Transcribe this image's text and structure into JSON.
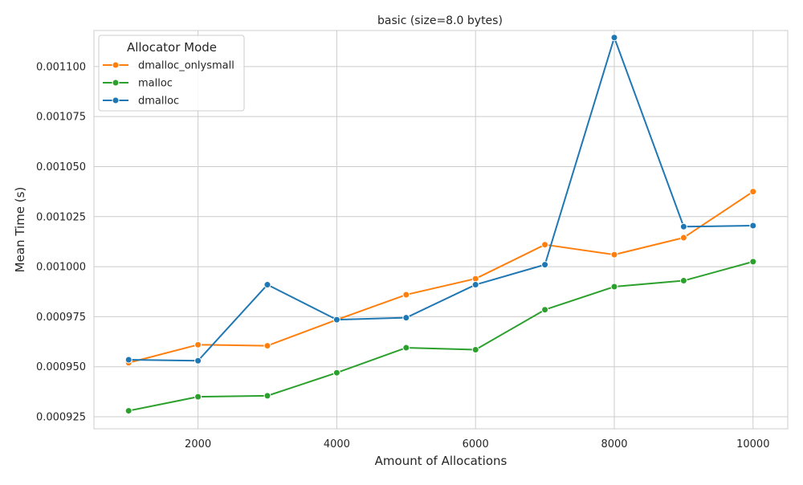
{
  "chart_data": {
    "type": "line",
    "title": "basic (size=8.0 bytes)",
    "xlabel": "Amount of Allocations",
    "ylabel": "Mean Time (s)",
    "xlim": [
      500,
      10500
    ],
    "ylim": [
      0.000919,
      0.001118
    ],
    "x_ticks": [
      2000,
      4000,
      6000,
      8000,
      10000
    ],
    "x_tick_labels": [
      "2000",
      "4000",
      "6000",
      "8000",
      "10000"
    ],
    "y_ticks": [
      0.000925,
      0.00095,
      0.000975,
      0.001,
      0.001025,
      0.00105,
      0.001075,
      0.0011
    ],
    "y_tick_labels": [
      "0.000925",
      "0.000950",
      "0.000975",
      "0.001000",
      "0.001025",
      "0.001050",
      "0.001075",
      "0.001100"
    ],
    "grid": true,
    "legend": {
      "title": "Allocator Mode",
      "placement": "top-left"
    },
    "x": [
      1000,
      2000,
      3000,
      4000,
      5000,
      6000,
      7000,
      8000,
      9000,
      10000
    ],
    "series": [
      {
        "name": "dmalloc_onlysmall",
        "color": "#ff7f0e",
        "values": [
          0.000952,
          0.000961,
          0.0009605,
          0.0009735,
          0.000986,
          0.000994,
          0.001011,
          0.001006,
          0.0010145,
          0.0010375
        ]
      },
      {
        "name": "malloc",
        "color": "#2ca02c",
        "values": [
          0.000928,
          0.000935,
          0.0009355,
          0.000947,
          0.0009595,
          0.0009585,
          0.0009785,
          0.00099,
          0.000993,
          0.0010025
        ]
      },
      {
        "name": "dmalloc",
        "color": "#1f77b4",
        "values": [
          0.0009535,
          0.000953,
          0.000991,
          0.0009735,
          0.0009745,
          0.000991,
          0.001001,
          0.0011145,
          0.00102,
          0.0010205
        ]
      }
    ]
  }
}
